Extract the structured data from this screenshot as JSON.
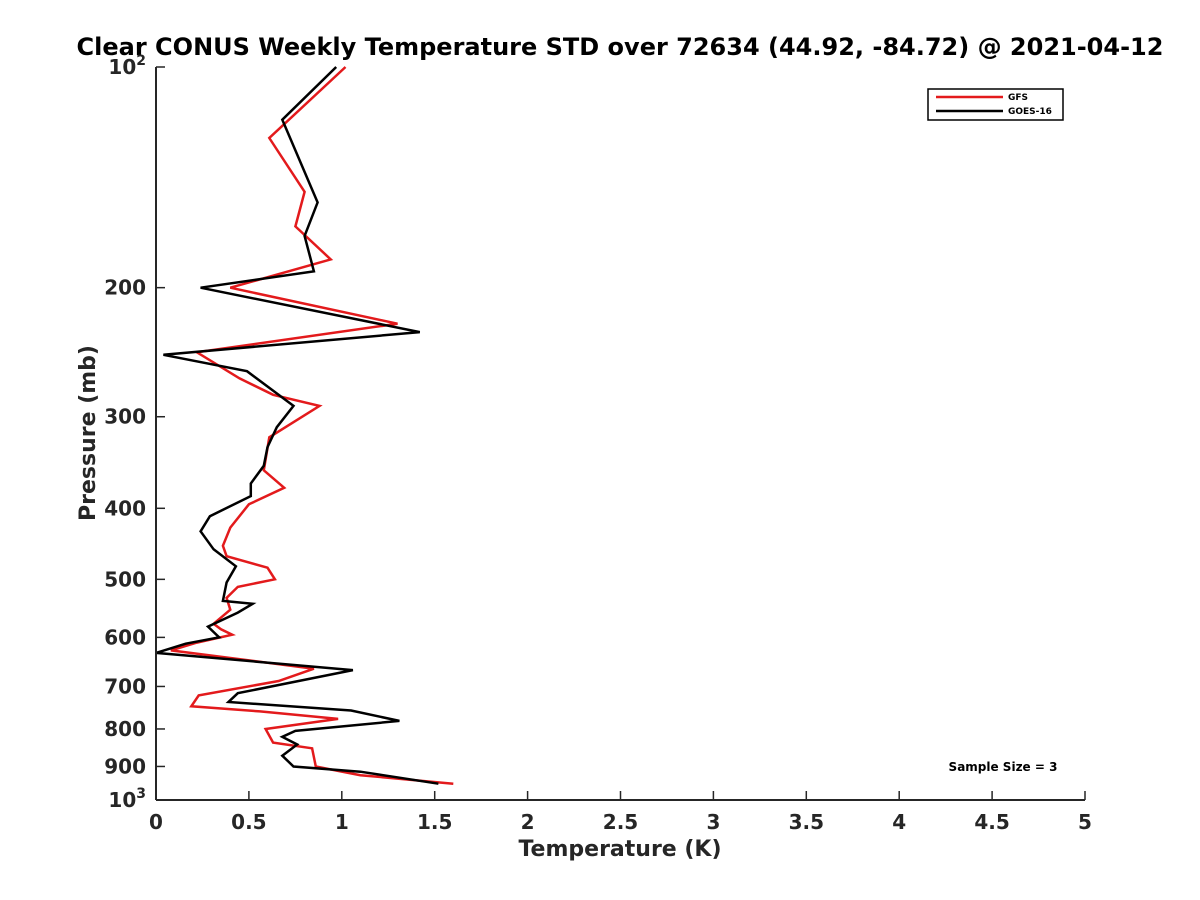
{
  "chart_data": {
    "type": "line",
    "title": "Clear CONUS Weekly Temperature STD over 72634 (44.92, -84.72) @ 2021-04-12",
    "xlabel": "Temperature (K)",
    "ylabel": "Pressure (mb)",
    "xlim": [
      0,
      5
    ],
    "ylim": [
      100,
      1000
    ],
    "y_scale": "log",
    "y_reversed": true,
    "x_ticks": [
      0,
      0.5,
      1,
      1.5,
      2,
      2.5,
      3,
      3.5,
      4,
      4.5,
      5
    ],
    "x_tick_labels": [
      "0",
      "0.5",
      "1",
      "1.5",
      "2",
      "2.5",
      "3",
      "3.5",
      "4",
      "4.5",
      "5"
    ],
    "y_ticks": [
      100,
      200,
      300,
      400,
      500,
      600,
      700,
      800,
      900,
      1000
    ],
    "y_tick_labels": [
      "10^2",
      "200",
      "300",
      "400",
      "500",
      "600",
      "700",
      "800",
      "900",
      "10^3"
    ],
    "grid": false,
    "legend_position": "top-right",
    "annotation": "Sample Size = 3",
    "series": [
      {
        "name": "GFS",
        "color": "#e31a1c",
        "points": [
          [
            1.02,
            100
          ],
          [
            0.61,
            125
          ],
          [
            0.8,
            148
          ],
          [
            0.75,
            165
          ],
          [
            0.94,
            183
          ],
          [
            0.4,
            200
          ],
          [
            1.3,
            224
          ],
          [
            0.22,
            245
          ],
          [
            0.45,
            266
          ],
          [
            0.63,
            280
          ],
          [
            0.88,
            290
          ],
          [
            0.61,
            320
          ],
          [
            0.58,
            355
          ],
          [
            0.69,
            375
          ],
          [
            0.5,
            395
          ],
          [
            0.4,
            425
          ],
          [
            0.36,
            450
          ],
          [
            0.38,
            465
          ],
          [
            0.6,
            482
          ],
          [
            0.64,
            500
          ],
          [
            0.44,
            512
          ],
          [
            0.38,
            530
          ],
          [
            0.4,
            550
          ],
          [
            0.31,
            575
          ],
          [
            0.35,
            585
          ],
          [
            0.41,
            595
          ],
          [
            0.22,
            610
          ],
          [
            0.08,
            625
          ],
          [
            0.5,
            645
          ],
          [
            0.85,
            662
          ],
          [
            0.66,
            688
          ],
          [
            0.23,
            720
          ],
          [
            0.19,
            745
          ],
          [
            0.56,
            757
          ],
          [
            0.98,
            775
          ],
          [
            0.59,
            800
          ],
          [
            0.63,
            835
          ],
          [
            0.84,
            850
          ],
          [
            0.86,
            900
          ],
          [
            1.1,
            925
          ],
          [
            1.6,
            950
          ]
        ]
      },
      {
        "name": "GOES-16",
        "color": "#000000",
        "points": [
          [
            0.97,
            100
          ],
          [
            0.68,
            118
          ],
          [
            0.87,
            153
          ],
          [
            0.8,
            170
          ],
          [
            0.85,
            190
          ],
          [
            0.24,
            200
          ],
          [
            1.42,
            230
          ],
          [
            0.04,
            247
          ],
          [
            0.49,
            260
          ],
          [
            0.74,
            290
          ],
          [
            0.65,
            310
          ],
          [
            0.6,
            330
          ],
          [
            0.58,
            350
          ],
          [
            0.51,
            370
          ],
          [
            0.51,
            385
          ],
          [
            0.29,
            410
          ],
          [
            0.24,
            430
          ],
          [
            0.31,
            455
          ],
          [
            0.43,
            480
          ],
          [
            0.38,
            505
          ],
          [
            0.36,
            535
          ],
          [
            0.52,
            540
          ],
          [
            0.44,
            555
          ],
          [
            0.28,
            580
          ],
          [
            0.34,
            600
          ],
          [
            0.16,
            612
          ],
          [
            0.0,
            630
          ],
          [
            1.06,
            665
          ],
          [
            0.44,
            715
          ],
          [
            0.39,
            735
          ],
          [
            1.05,
            755
          ],
          [
            1.31,
            780
          ],
          [
            0.75,
            805
          ],
          [
            0.68,
            820
          ],
          [
            0.76,
            840
          ],
          [
            0.68,
            870
          ],
          [
            0.74,
            900
          ],
          [
            1.1,
            915
          ],
          [
            1.52,
            950
          ]
        ]
      }
    ]
  }
}
